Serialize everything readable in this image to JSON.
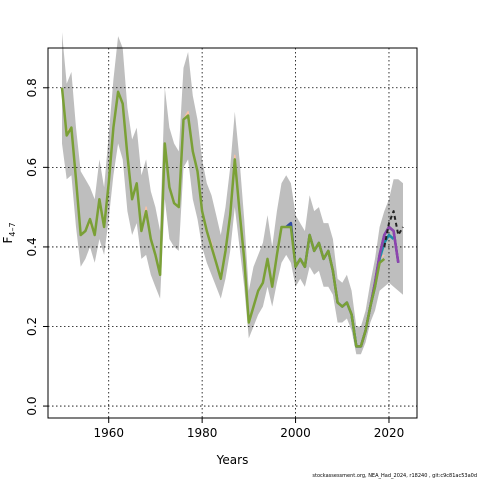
{
  "chart_data": {
    "type": "line",
    "title": "",
    "xlabel": "Years",
    "ylabel_main": "F",
    "ylabel_sub": "4–7",
    "xlim": [
      1947,
      2026
    ],
    "ylim": [
      -0.03,
      0.9
    ],
    "xticks": [
      1960,
      1980,
      2000,
      2020
    ],
    "xtick_labels": [
      "1960",
      "1980",
      "2000",
      "2020"
    ],
    "yticks": [
      0.0,
      0.2,
      0.4,
      0.6,
      0.8
    ],
    "ytick_labels": [
      "0.0",
      "0.2",
      "0.4",
      "0.6",
      "0.8"
    ],
    "grid": true,
    "band": {
      "x": [
        1950,
        1951,
        1952,
        1953,
        1954,
        1955,
        1956,
        1957,
        1958,
        1959,
        1960,
        1961,
        1962,
        1963,
        1964,
        1965,
        1966,
        1967,
        1968,
        1969,
        1970,
        1971,
        1972,
        1973,
        1974,
        1975,
        1976,
        1977,
        1978,
        1979,
        1980,
        1981,
        1982,
        1983,
        1984,
        1985,
        1986,
        1987,
        1988,
        1989,
        1990,
        1991,
        1992,
        1993,
        1994,
        1995,
        1996,
        1997,
        1998,
        1999,
        2000,
        2001,
        2002,
        2003,
        2004,
        2005,
        2006,
        2007,
        2008,
        2009,
        2010,
        2011,
        2012,
        2013,
        2014,
        2015,
        2016,
        2017,
        2018,
        2019,
        2020,
        2021,
        2022,
        2023
      ],
      "lower": [
        0.66,
        0.57,
        0.58,
        0.45,
        0.35,
        0.37,
        0.4,
        0.36,
        0.42,
        0.38,
        0.47,
        0.58,
        0.66,
        0.62,
        0.49,
        0.43,
        0.46,
        0.37,
        0.38,
        0.33,
        0.3,
        0.27,
        0.52,
        0.42,
        0.4,
        0.39,
        0.6,
        0.62,
        0.52,
        0.47,
        0.4,
        0.36,
        0.33,
        0.3,
        0.27,
        0.32,
        0.39,
        0.5,
        0.4,
        0.3,
        0.17,
        0.2,
        0.23,
        0.25,
        0.3,
        0.25,
        0.31,
        0.36,
        0.38,
        0.36,
        0.3,
        0.32,
        0.3,
        0.35,
        0.33,
        0.34,
        0.3,
        0.3,
        0.28,
        0.21,
        0.21,
        0.22,
        0.19,
        0.13,
        0.13,
        0.16,
        0.21,
        0.24,
        0.29,
        0.3,
        0.31,
        0.3,
        0.29,
        0.28
      ],
      "upper": [
        0.94,
        0.81,
        0.84,
        0.7,
        0.59,
        0.57,
        0.55,
        0.52,
        0.62,
        0.55,
        0.68,
        0.82,
        0.93,
        0.9,
        0.75,
        0.67,
        0.7,
        0.58,
        0.62,
        0.54,
        0.5,
        0.44,
        0.8,
        0.7,
        0.66,
        0.64,
        0.85,
        0.89,
        0.78,
        0.72,
        0.62,
        0.56,
        0.53,
        0.48,
        0.43,
        0.5,
        0.6,
        0.74,
        0.62,
        0.47,
        0.29,
        0.35,
        0.38,
        0.41,
        0.48,
        0.4,
        0.49,
        0.56,
        0.58,
        0.56,
        0.48,
        0.46,
        0.44,
        0.53,
        0.49,
        0.5,
        0.46,
        0.46,
        0.42,
        0.32,
        0.31,
        0.33,
        0.29,
        0.2,
        0.2,
        0.24,
        0.31,
        0.37,
        0.45,
        0.49,
        0.52,
        0.57,
        0.57,
        0.56
      ]
    },
    "series": [
      {
        "color": "#f7c0a5",
        "width": 1.5,
        "dash": false,
        "x": [
          1950,
          1951,
          1952,
          1953,
          1954,
          1955,
          1956,
          1957,
          1958,
          1959,
          1960,
          1961,
          1962,
          1963,
          1964,
          1965,
          1966,
          1967,
          1968,
          1969,
          1970,
          1971,
          1972,
          1973,
          1974,
          1975,
          1976,
          1977,
          1978,
          1979,
          1980,
          1981,
          1982,
          1983,
          1984,
          1985,
          1986,
          1987,
          1988,
          1989,
          1990,
          1991,
          1992,
          1993,
          1994,
          1995,
          1996,
          1997,
          1998,
          1999,
          2000,
          2001,
          2002,
          2003,
          2004,
          2005,
          2006,
          2007,
          2008,
          2009,
          2010,
          2011,
          2012,
          2013,
          2014,
          2015,
          2016,
          2017,
          2018,
          2019
        ],
        "values": [
          0.8,
          0.69,
          0.7,
          0.57,
          0.43,
          0.44,
          0.46,
          0.43,
          0.51,
          0.45,
          0.56,
          0.7,
          0.79,
          0.76,
          0.63,
          0.52,
          0.56,
          0.44,
          0.5,
          0.42,
          0.38,
          0.33,
          0.66,
          0.55,
          0.51,
          0.5,
          0.72,
          0.74,
          0.64,
          0.59,
          0.49,
          0.44,
          0.41,
          0.36,
          0.32,
          0.39,
          0.48,
          0.63,
          0.49,
          0.37,
          0.21,
          0.25,
          0.29,
          0.31,
          0.37,
          0.3,
          0.38,
          0.45,
          0.45,
          0.46,
          0.35,
          0.37,
          0.35,
          0.43,
          0.39,
          0.41,
          0.37,
          0.39,
          0.34,
          0.26,
          0.25,
          0.26,
          0.23,
          0.15,
          0.15,
          0.19,
          0.25,
          0.3,
          0.37,
          0.38
        ]
      },
      {
        "color": "#2f4aa3",
        "width": 2.5,
        "dash": false,
        "x": [
          1998,
          1999,
          2000,
          2001,
          2002,
          2003,
          2004,
          2005,
          2006,
          2007,
          2008,
          2009,
          2010,
          2011,
          2012,
          2013,
          2014,
          2015,
          2016,
          2017,
          2018,
          2019,
          2020,
          2021,
          2022
        ],
        "values": [
          0.45,
          0.46,
          0.35,
          0.37,
          0.35,
          0.43,
          0.39,
          0.41,
          0.37,
          0.39,
          0.34,
          0.26,
          0.25,
          0.26,
          0.23,
          0.15,
          0.15,
          0.19,
          0.25,
          0.31,
          0.38,
          0.43,
          0.45,
          0.44,
          0.36
        ]
      },
      {
        "color": "#1e8fa6",
        "width": 2.5,
        "dash": false,
        "x": [
          2012,
          2013,
          2014,
          2015,
          2016,
          2017,
          2018,
          2019,
          2020,
          2021
        ],
        "values": [
          0.23,
          0.15,
          0.15,
          0.19,
          0.25,
          0.3,
          0.37,
          0.41,
          0.43,
          0.42
        ]
      },
      {
        "color": "#8e44ad",
        "width": 2.5,
        "dash": false,
        "x": [
          2013,
          2014,
          2015,
          2016,
          2017,
          2018,
          2019,
          2020,
          2021,
          2022
        ],
        "values": [
          0.15,
          0.15,
          0.19,
          0.25,
          0.31,
          0.38,
          0.43,
          0.45,
          0.44,
          0.36
        ]
      },
      {
        "color": "#7aa036",
        "width": 2.5,
        "dash": false,
        "x": [
          1950,
          1951,
          1952,
          1953,
          1954,
          1955,
          1956,
          1957,
          1958,
          1959,
          1960,
          1961,
          1962,
          1963,
          1964,
          1965,
          1966,
          1967,
          1968,
          1969,
          1970,
          1971,
          1972,
          1973,
          1974,
          1975,
          1976,
          1977,
          1978,
          1979,
          1980,
          1981,
          1982,
          1983,
          1984,
          1985,
          1986,
          1987,
          1988,
          1989,
          1990,
          1991,
          1992,
          1993,
          1994,
          1995,
          1996,
          1997,
          1998,
          1999,
          2000,
          2001,
          2002,
          2003,
          2004,
          2005,
          2006,
          2007,
          2008,
          2009,
          2010,
          2011,
          2012,
          2013,
          2014,
          2015,
          2016,
          2017,
          2018,
          2019
        ],
        "values": [
          0.8,
          0.68,
          0.7,
          0.57,
          0.43,
          0.44,
          0.47,
          0.43,
          0.52,
          0.45,
          0.56,
          0.7,
          0.79,
          0.76,
          0.63,
          0.52,
          0.56,
          0.44,
          0.49,
          0.42,
          0.38,
          0.33,
          0.66,
          0.55,
          0.51,
          0.5,
          0.72,
          0.73,
          0.64,
          0.59,
          0.49,
          0.44,
          0.4,
          0.36,
          0.32,
          0.39,
          0.48,
          0.62,
          0.49,
          0.37,
          0.21,
          0.25,
          0.29,
          0.31,
          0.37,
          0.3,
          0.38,
          0.45,
          0.45,
          0.45,
          0.35,
          0.37,
          0.35,
          0.43,
          0.39,
          0.41,
          0.37,
          0.39,
          0.34,
          0.26,
          0.25,
          0.26,
          0.23,
          0.15,
          0.15,
          0.19,
          0.25,
          0.3,
          0.36,
          0.37
        ]
      },
      {
        "color": "#222222",
        "width": 2,
        "dash": true,
        "x": [
          2019,
          2020,
          2021,
          2022,
          2023
        ],
        "values": [
          0.4,
          0.46,
          0.49,
          0.43,
          0.45
        ]
      }
    ],
    "footer": "stockassessment.org, NEA_Had_2024, r18240 , git:c9c81ac53a0d"
  }
}
